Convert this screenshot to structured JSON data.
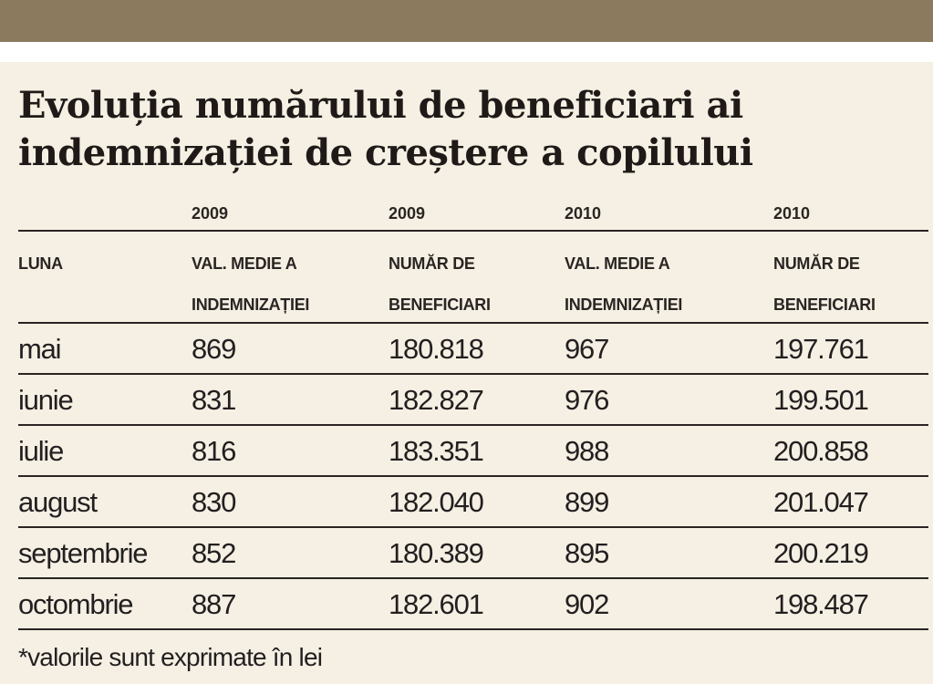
{
  "title": "Evoluția numărului de beneficiari ai indemnizației de creștere a copilului",
  "years": [
    "2009",
    "2009",
    "2010",
    "2010"
  ],
  "headers": {
    "luna": "LUNA",
    "col1": {
      "line1": "VAL. MEDIE A",
      "line2": "INDEMNIZAȚIEI"
    },
    "col2": {
      "line1": "NUMĂR DE",
      "line2": "BENEFICIARI"
    },
    "col3": {
      "line1": "VAL. MEDIE A",
      "line2": "INDEMNIZAȚIEI"
    },
    "col4": {
      "line1": "NUMĂR DE",
      "line2": "BENEFICIARI"
    }
  },
  "rows": [
    {
      "luna": "mai",
      "val2009": "869",
      "ben2009": "180.818",
      "val2010": "967",
      "ben2010": "197.761"
    },
    {
      "luna": "iunie",
      "val2009": "831",
      "ben2009": "182.827",
      "val2010": "976",
      "ben2010": "199.501"
    },
    {
      "luna": "iulie",
      "val2009": "816",
      "ben2009": "183.351",
      "val2010": "988",
      "ben2010": "200.858"
    },
    {
      "luna": "august",
      "val2009": "830",
      "ben2009": "182.040",
      "val2010": "899",
      "ben2010": "201.047"
    },
    {
      "luna": "septembrie",
      "val2009": "852",
      "ben2009": "180.389",
      "val2010": "895",
      "ben2010": "200.219"
    },
    {
      "luna": "octombrie",
      "val2009": "887",
      "ben2009": "182.601",
      "val2010": "902",
      "ben2010": "198.487"
    }
  ],
  "note": "*valorile sunt exprimate în lei",
  "colors": {
    "top_bar": "#8b7a5e",
    "background": "#f5f0e3",
    "text": "#231f20"
  }
}
